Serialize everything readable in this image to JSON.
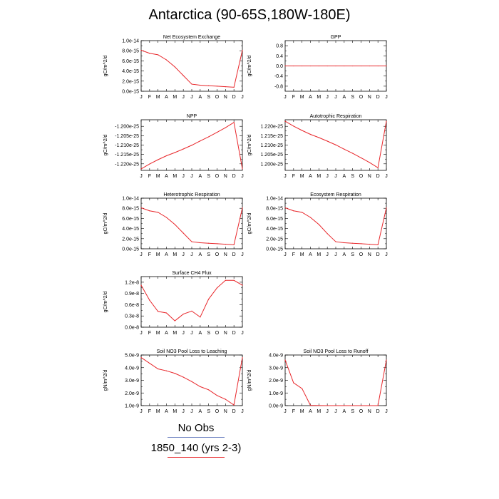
{
  "title": "Antarctica (90-65S,180W-180E)",
  "colors": {
    "model": "#e8262a",
    "obs": "#6a7fc0",
    "axis": "#000000"
  },
  "months": [
    "J",
    "F",
    "M",
    "A",
    "M",
    "J",
    "J",
    "A",
    "S",
    "O",
    "N",
    "D",
    "J"
  ],
  "legend": [
    {
      "label": "No Obs",
      "color": "#6a7fc0"
    },
    {
      "label": "1850_140 (yrs 2-3)",
      "color": "#e8262a"
    }
  ],
  "chart_data": [
    {
      "type": "line",
      "title": "Net Ecosystem Exchange",
      "ylabel": "gC/m^2/d",
      "ylim": [
        0,
        1e-14
      ],
      "yticks": [
        0,
        2e-15,
        4e-15,
        6e-15,
        8e-15,
        1e-14
      ],
      "yticklabels": [
        "0.0e-15",
        "2.0e-15",
        "4.0e-15",
        "6.0e-15",
        "8.0e-15",
        "1.0e-14"
      ],
      "values": [
        8.1e-15,
        7.5e-15,
        7.2e-15,
        6.2e-15,
        4.8e-15,
        3.1e-15,
        1.4e-15,
        1.2e-15,
        1.1e-15,
        1e-15,
        9e-16,
        8e-16,
        8.1e-15
      ]
    },
    {
      "type": "line",
      "title": "GPP",
      "ylabel": "gC/m^2/d",
      "ylim": [
        -1,
        1
      ],
      "yticks": [
        -0.8,
        -0.4,
        0,
        0.4,
        0.8
      ],
      "yticklabels": [
        "-0.8",
        "-0.4",
        "0.0",
        "0.4",
        "0.8"
      ],
      "values": [
        0,
        0,
        0,
        0,
        0,
        0,
        0,
        0,
        0,
        0,
        0,
        0,
        0
      ]
    },
    {
      "type": "line",
      "title": "NPP",
      "ylabel": "gC/m^2/d",
      "ylim": [
        -1.2235e-25,
        -1.1965e-25
      ],
      "yticks": [
        -1.22e-25,
        -1.215e-25,
        -1.21e-25,
        -1.205e-25,
        -1.2e-25
      ],
      "yticklabels": [
        "-1.220e-25",
        "-1.215e-25",
        "-1.210e-25",
        "-1.205e-25",
        "-1.200e-25"
      ],
      "values": [
        -1.2227e-25,
        -1.2201e-25,
        -1.2178e-25,
        -1.2157e-25,
        -1.214e-25,
        -1.2121e-25,
        -1.2101e-25,
        -1.2078e-25,
        -1.2056e-25,
        -1.2032e-25,
        -1.2007e-25,
        -1.1979e-25,
        -1.2227e-25
      ]
    },
    {
      "type": "line",
      "title": "Autotrophic Respiration",
      "ylabel": "gC/m^2/d",
      "ylim": [
        1.1965e-25,
        1.2235e-25
      ],
      "yticks": [
        1.2e-25,
        1.205e-25,
        1.21e-25,
        1.215e-25,
        1.22e-25
      ],
      "yticklabels": [
        "1.200e-25",
        "1.205e-25",
        "1.210e-25",
        "1.215e-25",
        "1.220e-25"
      ],
      "values": [
        1.2227e-25,
        1.2201e-25,
        1.2178e-25,
        1.2157e-25,
        1.214e-25,
        1.2121e-25,
        1.2101e-25,
        1.2078e-25,
        1.2056e-25,
        1.2032e-25,
        1.2007e-25,
        1.1979e-25,
        1.2227e-25
      ]
    },
    {
      "type": "line",
      "title": "Heterotrophic Respiration",
      "ylabel": "gC/m^2/d",
      "ylim": [
        0,
        1e-14
      ],
      "yticks": [
        0,
        2e-15,
        4e-15,
        6e-15,
        8e-15,
        1e-14
      ],
      "yticklabels": [
        "0.0e-15",
        "2.0e-15",
        "4.0e-15",
        "6.0e-15",
        "8.0e-15",
        "1.0e-14"
      ],
      "values": [
        8.1e-15,
        7.5e-15,
        7.2e-15,
        6.2e-15,
        4.8e-15,
        3.1e-15,
        1.4e-15,
        1.2e-15,
        1.1e-15,
        1e-15,
        9e-16,
        8e-16,
        8.1e-15
      ]
    },
    {
      "type": "line",
      "title": "Ecosystem Respiration",
      "ylabel": "gC/m^2/d",
      "ylim": [
        0,
        1e-14
      ],
      "yticks": [
        0,
        2e-15,
        4e-15,
        6e-15,
        8e-15,
        1e-14
      ],
      "yticklabels": [
        "0.0e-15",
        "2.0e-15",
        "4.0e-15",
        "6.0e-15",
        "8.0e-15",
        "1.0e-14"
      ],
      "values": [
        8.1e-15,
        7.5e-15,
        7.2e-15,
        6.2e-15,
        4.8e-15,
        3e-15,
        1.4e-15,
        1.2e-15,
        1.1e-15,
        1e-15,
        9e-16,
        8e-16,
        8.1e-15
      ]
    },
    {
      "type": "line",
      "title": "Surface CH4 Flux",
      "ylabel": "gC/m^2/d",
      "ylim": [
        0,
        1.35e-08
      ],
      "yticks": [
        0,
        3e-09,
        6e-09,
        9e-09,
        1.2e-08
      ],
      "yticklabels": [
        "0.0e-8",
        "0.3e-8",
        "0.6e-8",
        "0.9e-8",
        "1.2e-8"
      ],
      "values": [
        1.12e-08,
        7.2e-09,
        4.2e-09,
        3.8e-09,
        1.7e-09,
        3.5e-09,
        4.3e-09,
        2.7e-09,
        7.5e-09,
        1.05e-08,
        1.25e-08,
        1.25e-08,
        1.12e-08
      ]
    },
    {
      "type": "line",
      "title": "Soil NO3 Pool Loss to Leaching",
      "ylabel": "gN/m^2/d",
      "ylim": [
        1e-09,
        5e-09
      ],
      "yticks": [
        1e-09,
        2e-09,
        3e-09,
        4e-09,
        5e-09
      ],
      "yticklabels": [
        "1.0e-9",
        "2.0e-9",
        "3.0e-9",
        "4.0e-9",
        "5.0e-9"
      ],
      "values": [
        4.8e-09,
        4.35e-09,
        3.9e-09,
        3.75e-09,
        3.55e-09,
        3.25e-09,
        2.9e-09,
        2.5e-09,
        2.25e-09,
        1.8e-09,
        1.5e-09,
        1.05e-09,
        4.8e-09
      ]
    },
    {
      "type": "line",
      "title": "Soil NO3 Pool Loss to Runoff",
      "ylabel": "gN/m^2/d",
      "ylim": [
        0,
        4e-09
      ],
      "yticks": [
        0,
        1e-09,
        2e-09,
        3e-09,
        4e-09
      ],
      "yticklabels": [
        "0.0e-9",
        "1.0e-9",
        "2.0e-9",
        "3.0e-9",
        "4.0e-9"
      ],
      "values": [
        3.6e-09,
        1.8e-09,
        1.35e-09,
        2e-11,
        1e-11,
        0,
        0,
        0,
        0,
        0,
        0,
        0,
        3.6e-09
      ]
    }
  ]
}
